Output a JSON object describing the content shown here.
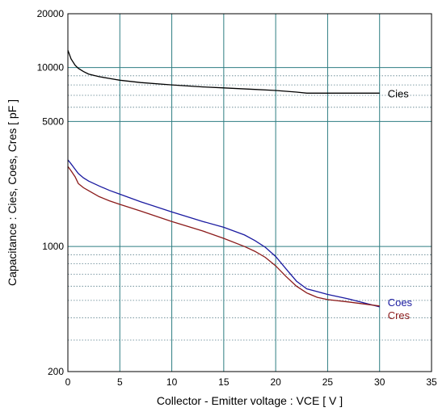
{
  "chart_data": {
    "type": "line",
    "xlabel": "Collector - Emitter voltage  :  VCE  [ V ]",
    "ylabel": "Capacitance  :  Cies, Coes, Cres  [ pF ]",
    "xlim": [
      0,
      35
    ],
    "ylim": [
      200,
      20000
    ],
    "y_scale": "log",
    "x_ticks": [
      0,
      5,
      10,
      15,
      20,
      25,
      30,
      35
    ],
    "x_tick_labels": [
      "0",
      "5",
      "10",
      "15",
      "20",
      "25",
      "30",
      "35"
    ],
    "y_ticks": [
      200,
      1000,
      5000,
      10000,
      20000
    ],
    "y_tick_labels": [
      "200",
      "1000",
      "5000",
      "10000",
      "20000"
    ],
    "y_minor_gridlines": [
      300,
      400,
      500,
      600,
      700,
      800,
      900,
      6000,
      7000,
      8000,
      9000
    ],
    "grid": true,
    "series": [
      {
        "name": "Cies",
        "color": "#000000",
        "x": [
          0,
          0.3,
          0.7,
          1,
          1.5,
          2,
          3,
          4,
          5,
          7,
          10,
          13,
          15,
          18,
          20,
          22,
          23,
          25,
          28,
          30
        ],
        "y": [
          12500,
          11200,
          10300,
          9900,
          9500,
          9200,
          8900,
          8700,
          8500,
          8250,
          8000,
          7800,
          7700,
          7550,
          7450,
          7300,
          7200,
          7200,
          7200,
          7200
        ]
      },
      {
        "name": "Coes",
        "color": "#1a1aa0",
        "x": [
          0,
          0.3,
          0.7,
          1,
          1.5,
          2,
          3,
          4,
          5,
          7,
          10,
          13,
          15,
          17,
          18,
          19,
          20,
          21,
          22,
          23,
          24,
          25,
          27,
          30
        ],
        "y": [
          3050,
          2900,
          2700,
          2560,
          2420,
          2320,
          2180,
          2060,
          1960,
          1780,
          1560,
          1380,
          1280,
          1160,
          1080,
          990,
          880,
          750,
          640,
          580,
          560,
          540,
          510,
          460
        ]
      },
      {
        "name": "Cres",
        "color": "#8b1a1a",
        "x": [
          0,
          0.3,
          0.7,
          1,
          1.5,
          2,
          3,
          4,
          5,
          7,
          10,
          13,
          15,
          17,
          18,
          19,
          20,
          21,
          22,
          23,
          24,
          25,
          27,
          30
        ],
        "y": [
          2800,
          2650,
          2450,
          2250,
          2130,
          2050,
          1900,
          1800,
          1720,
          1580,
          1380,
          1220,
          1110,
          1000,
          940,
          870,
          780,
          680,
          600,
          550,
          520,
          505,
          490,
          465
        ]
      }
    ]
  }
}
